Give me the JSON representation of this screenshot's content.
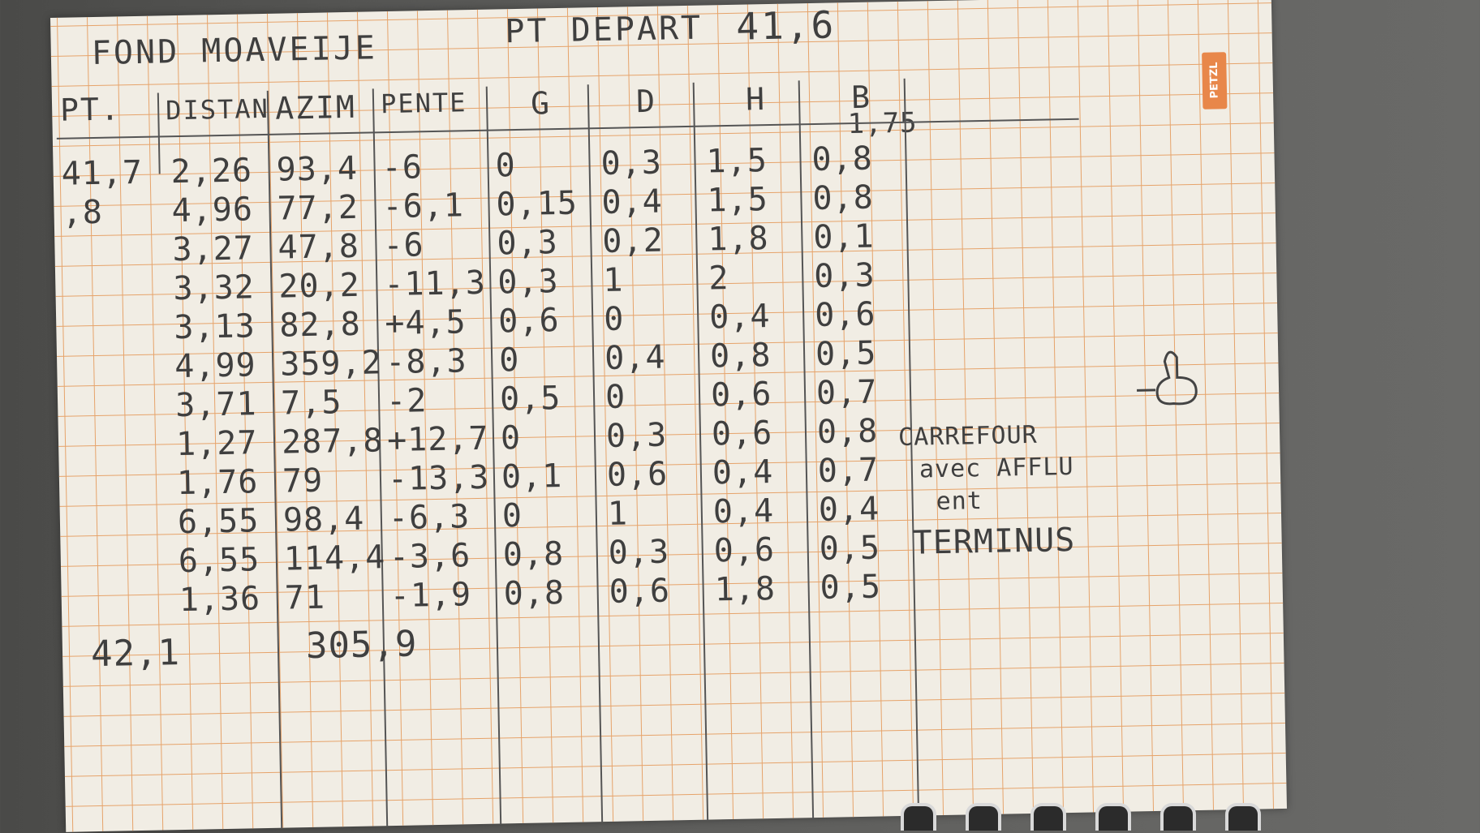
{
  "title": {
    "left": "FOND MOAVEIJE",
    "middle": "PT DEPART",
    "start_value": "41,6"
  },
  "brand": "PETZL",
  "headers": [
    "PT.",
    "DISTAN",
    "AZIM",
    "PENTE",
    "G",
    "D",
    "H",
    "B"
  ],
  "b_top_value": "1,75",
  "rows": [
    {
      "pt": "41,7",
      "dist": "2,26",
      "azim": "93,4",
      "pente": "-6",
      "g": "0",
      "d": "0,3",
      "h": "1,5",
      "b": "0,8"
    },
    {
      "pt": ",8",
      "dist": "4,96",
      "azim": "77,2",
      "pente": "-6,1",
      "g": "0,15",
      "d": "0,4",
      "h": "1,5",
      "b": "0,8"
    },
    {
      "pt": "",
      "dist": "3,27",
      "azim": "47,8",
      "pente": "-6",
      "g": "0,3",
      "d": "0,2",
      "h": "1,8",
      "b": "0,1"
    },
    {
      "pt": "",
      "dist": "3,32",
      "azim": "20,2",
      "pente": "-11,3",
      "g": "0,3",
      "d": "1",
      "h": "2",
      "b": "0,3"
    },
    {
      "pt": "",
      "dist": "3,13",
      "azim": "82,8",
      "pente": "+4,5",
      "g": "0,6",
      "d": "0",
      "h": "0,4",
      "b": "0,6"
    },
    {
      "pt": "",
      "dist": "4,99",
      "azim": "359,2",
      "pente": "-8,3",
      "g": "0",
      "d": "0,4",
      "h": "0,8",
      "b": "0,5"
    },
    {
      "pt": "",
      "dist": "3,71",
      "azim": "7,5",
      "pente": "-2",
      "g": "0,5",
      "d": "0",
      "h": "0,6",
      "b": "0,7"
    },
    {
      "pt": "",
      "dist": "1,27",
      "azim": "287,8",
      "pente": "+12,7",
      "g": "0",
      "d": "0,3",
      "h": "0,6",
      "b": "0,8"
    },
    {
      "pt": "",
      "dist": "1,76",
      "azim": "79",
      "pente": "-13,3",
      "g": "0,1",
      "d": "0,6",
      "h": "0,4",
      "b": "0,7"
    },
    {
      "pt": "",
      "dist": "6,55",
      "azim": "98,4",
      "pente": "-6,3",
      "g": "0",
      "d": "1",
      "h": "0,4",
      "b": "0,4"
    },
    {
      "pt": "",
      "dist": "6,55",
      "azim": "114,4",
      "pente": "-3,6",
      "g": "0,8",
      "d": "0,3",
      "h": "0,6",
      "b": "0,5"
    },
    {
      "pt": "",
      "dist": "1,36",
      "azim": "71",
      "pente": "-1,9",
      "g": "0,8",
      "d": "0,6",
      "h": "1,8",
      "b": "0,5"
    }
  ],
  "footer": {
    "pt": "42,1",
    "azim": "305,9"
  },
  "notes": {
    "carrefour_line1": "CARREFOUR",
    "carrefour_line2": "avec AFFLU",
    "carrefour_line3": "ent",
    "terminus": "TERMINUS"
  }
}
